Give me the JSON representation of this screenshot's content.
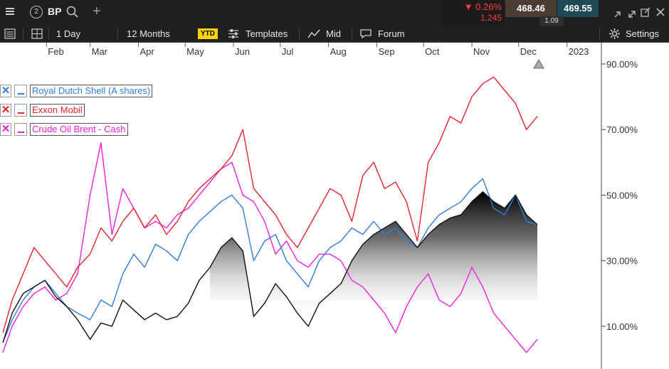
{
  "header": {
    "symbol": "BP",
    "workspace_number": "2",
    "change_pct": "▼ 0.26%",
    "change_abs": "1.245",
    "bid": "468.46",
    "ask": "469.55",
    "spread": "1.09",
    "icons": [
      "menu-icon",
      "search-icon",
      "plus-icon",
      "collapse-icon",
      "expand-icon",
      "popout-icon",
      "close-icon"
    ]
  },
  "toolbar": {
    "interval": "1 Day",
    "range": "12 Months",
    "ytd": "YTD",
    "templates": "Templates",
    "price_type": "Mid",
    "forum": "Forum",
    "settings": "Settings"
  },
  "colors": {
    "shell": "#2f7de1",
    "exxon": "#e8242c",
    "brent": "#f020e0",
    "bp_line": "#111111",
    "negative": "#ff3b3b"
  },
  "chart_data": {
    "type": "line",
    "x_axis_labels": [
      "Feb",
      "Mar",
      "Apr",
      "May",
      "Jun",
      "Jul",
      "Aug",
      "Sep",
      "Oct",
      "Nov",
      "Dec",
      "2023"
    ],
    "y_axis_labels": [
      "90.00%",
      "70.00%",
      "50.00%",
      "30.00%",
      "10.00%"
    ],
    "ylim": [
      0,
      90
    ],
    "grid": false,
    "legend_position": "top-left",
    "series": [
      {
        "name": "BP",
        "style": "area-gradient",
        "x": [
          "2022-01-04",
          "2022-01-10",
          "2022-01-17",
          "2022-01-24",
          "2022-01-31",
          "2022-02-07",
          "2022-02-14",
          "2022-02-21",
          "2022-03-01",
          "2022-03-08",
          "2022-03-15",
          "2022-03-22",
          "2022-03-29",
          "2022-04-05",
          "2022-04-12",
          "2022-04-19",
          "2022-04-26",
          "2022-05-03",
          "2022-05-10",
          "2022-05-17",
          "2022-05-24",
          "2022-05-31",
          "2022-06-07",
          "2022-06-14",
          "2022-06-21",
          "2022-06-28",
          "2022-07-05",
          "2022-07-12",
          "2022-07-19",
          "2022-07-26",
          "2022-08-02",
          "2022-08-09",
          "2022-08-16",
          "2022-08-23",
          "2022-08-30",
          "2022-09-06",
          "2022-09-13",
          "2022-09-20",
          "2022-09-27",
          "2022-10-04",
          "2022-10-11",
          "2022-10-18",
          "2022-10-25",
          "2022-11-01",
          "2022-11-08",
          "2022-11-15",
          "2022-11-22",
          "2022-11-29",
          "2022-12-06",
          "2022-12-13"
        ],
        "y": [
          5,
          14,
          20,
          22,
          24,
          19,
          16,
          12,
          6,
          11,
          10,
          18,
          15,
          12,
          14,
          12,
          13,
          17,
          24,
          28,
          34,
          37,
          33,
          13,
          17,
          23,
          19,
          14,
          10,
          17,
          20,
          23,
          30,
          35,
          38,
          40,
          42,
          38,
          34,
          38,
          41,
          43,
          44,
          48,
          51,
          48,
          46,
          50,
          44,
          41
        ]
      },
      {
        "name": "Royal Dutch Shell (A shares)",
        "style": "line",
        "x": [
          "2022-01-04",
          "2022-01-10",
          "2022-01-17",
          "2022-01-24",
          "2022-01-31",
          "2022-02-07",
          "2022-02-14",
          "2022-02-21",
          "2022-03-01",
          "2022-03-08",
          "2022-03-15",
          "2022-03-22",
          "2022-03-29",
          "2022-04-05",
          "2022-04-12",
          "2022-04-19",
          "2022-04-26",
          "2022-05-03",
          "2022-05-10",
          "2022-05-17",
          "2022-05-24",
          "2022-05-31",
          "2022-06-07",
          "2022-06-14",
          "2022-06-21",
          "2022-06-28",
          "2022-07-05",
          "2022-07-12",
          "2022-07-19",
          "2022-07-26",
          "2022-08-02",
          "2022-08-09",
          "2022-08-16",
          "2022-08-23",
          "2022-08-30",
          "2022-09-06",
          "2022-09-13",
          "2022-09-20",
          "2022-09-27",
          "2022-10-04",
          "2022-10-11",
          "2022-10-18",
          "2022-10-25",
          "2022-11-01",
          "2022-11-08",
          "2022-11-15",
          "2022-11-22",
          "2022-11-29",
          "2022-12-06",
          "2022-12-13"
        ],
        "y": [
          5,
          12,
          18,
          22,
          24,
          20,
          16,
          14,
          12,
          18,
          16,
          26,
          32,
          28,
          35,
          33,
          30,
          38,
          42,
          45,
          48,
          50,
          46,
          30,
          36,
          38,
          30,
          26,
          22,
          30,
          34,
          36,
          40,
          38,
          42,
          38,
          40,
          36,
          34,
          40,
          44,
          46,
          48,
          52,
          55,
          46,
          44,
          50,
          42,
          41
        ]
      },
      {
        "name": "Exxon Mobil",
        "style": "line",
        "x": [
          "2022-01-04",
          "2022-01-10",
          "2022-01-17",
          "2022-01-24",
          "2022-01-31",
          "2022-02-07",
          "2022-02-14",
          "2022-02-21",
          "2022-03-01",
          "2022-03-08",
          "2022-03-15",
          "2022-03-22",
          "2022-03-29",
          "2022-04-05",
          "2022-04-12",
          "2022-04-19",
          "2022-04-26",
          "2022-05-03",
          "2022-05-10",
          "2022-05-17",
          "2022-05-24",
          "2022-05-31",
          "2022-06-07",
          "2022-06-14",
          "2022-06-21",
          "2022-06-28",
          "2022-07-05",
          "2022-07-12",
          "2022-07-19",
          "2022-07-26",
          "2022-08-02",
          "2022-08-09",
          "2022-08-16",
          "2022-08-23",
          "2022-08-30",
          "2022-09-06",
          "2022-09-13",
          "2022-09-20",
          "2022-09-27",
          "2022-10-04",
          "2022-10-11",
          "2022-10-18",
          "2022-10-25",
          "2022-11-01",
          "2022-11-08",
          "2022-11-15",
          "2022-11-22",
          "2022-11-29",
          "2022-12-06",
          "2022-12-13"
        ],
        "y": [
          8,
          18,
          26,
          34,
          30,
          26,
          22,
          28,
          32,
          40,
          36,
          42,
          46,
          40,
          44,
          38,
          42,
          48,
          52,
          55,
          58,
          62,
          70,
          52,
          48,
          44,
          38,
          34,
          40,
          46,
          52,
          50,
          42,
          56,
          60,
          52,
          54,
          48,
          36,
          60,
          66,
          74,
          72,
          80,
          84,
          86,
          82,
          78,
          70,
          74
        ]
      },
      {
        "name": "Crude Oil Brent - Cash",
        "style": "line",
        "x": [
          "2022-01-04",
          "2022-01-10",
          "2022-01-17",
          "2022-01-24",
          "2022-01-31",
          "2022-02-07",
          "2022-02-14",
          "2022-02-21",
          "2022-03-01",
          "2022-03-08",
          "2022-03-15",
          "2022-03-22",
          "2022-03-29",
          "2022-04-05",
          "2022-04-12",
          "2022-04-19",
          "2022-04-26",
          "2022-05-03",
          "2022-05-10",
          "2022-05-17",
          "2022-05-24",
          "2022-05-31",
          "2022-06-07",
          "2022-06-14",
          "2022-06-21",
          "2022-06-28",
          "2022-07-05",
          "2022-07-12",
          "2022-07-19",
          "2022-07-26",
          "2022-08-02",
          "2022-08-09",
          "2022-08-16",
          "2022-08-23",
          "2022-08-30",
          "2022-09-06",
          "2022-09-13",
          "2022-09-20",
          "2022-09-27",
          "2022-10-04",
          "2022-10-11",
          "2022-10-18",
          "2022-10-25",
          "2022-11-01",
          "2022-11-08",
          "2022-11-15",
          "2022-11-22",
          "2022-11-29",
          "2022-12-06",
          "2022-12-13"
        ],
        "y": [
          2,
          10,
          16,
          20,
          22,
          18,
          20,
          26,
          50,
          66,
          38,
          52,
          46,
          40,
          42,
          40,
          44,
          46,
          50,
          54,
          58,
          60,
          50,
          48,
          42,
          32,
          36,
          30,
          28,
          32,
          32,
          30,
          24,
          22,
          18,
          14,
          8,
          16,
          22,
          26,
          18,
          16,
          20,
          28,
          22,
          14,
          10,
          6,
          2,
          6
        ]
      }
    ]
  }
}
